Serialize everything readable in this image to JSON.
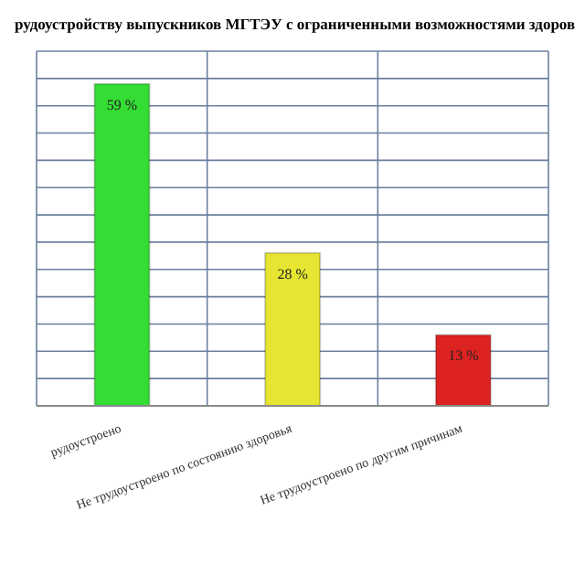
{
  "chart_data": {
    "type": "bar",
    "title": "рудоустройству выпускников МГТЭУ с ограниченными возможностями здоров",
    "categories": [
      "рудоустроено",
      "Не трудоустроено по состоянию здоровья",
      "Не трудоустроено по другим причинам"
    ],
    "values": [
      59,
      28,
      13
    ],
    "colors": [
      "#33dd33",
      "#e6e632",
      "#dd2222"
    ],
    "value_labels": [
      "59 %",
      "28 %",
      "13 %"
    ],
    "ylim": [
      0,
      65
    ],
    "yticks": [
      {
        "value": 0,
        "label": null
      },
      {
        "value": 5,
        "label": null
      },
      {
        "value": 10,
        "label": null
      },
      {
        "value": 15,
        "label": null
      },
      {
        "value": 20,
        "label": null
      },
      {
        "value": 25,
        "label": null
      },
      {
        "value": 30,
        "label": null
      },
      {
        "value": 35,
        "label": null
      },
      {
        "value": 40,
        "label": null
      },
      {
        "value": 45,
        "label": null
      },
      {
        "value": 50,
        "label": null
      },
      {
        "value": 55,
        "label": null
      },
      {
        "value": 60,
        "label": null
      },
      {
        "value": 65,
        "label": null
      }
    ],
    "tick_labels": "x",
    "grid": true
  }
}
